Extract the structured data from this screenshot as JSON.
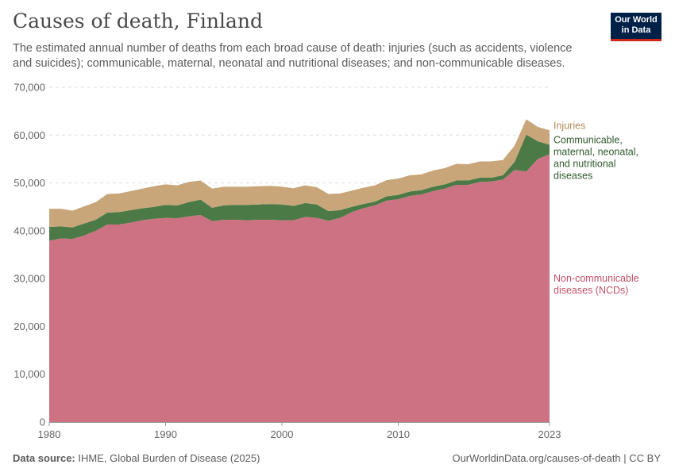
{
  "header": {
    "title": "Causes of death, Finland",
    "subtitle": "The estimated annual number of deaths from each broad cause of death: injuries (such as accidents, violence and suicides); communicable, maternal, neonatal and nutritional diseases; and non-communicable diseases."
  },
  "logo": {
    "line1": "Our World",
    "line2": "in Data"
  },
  "footer": {
    "source_label": "Data source:",
    "source_text": "IHME, Global Burden of Disease (2025)",
    "url_text": "OurWorldinData.org/causes-of-death | CC BY"
  },
  "colors": {
    "ncd": "#cc7282",
    "communicable": "#4c7a46",
    "injuries": "#c8a67a",
    "ncd_label": "#c2506a",
    "communicable_label": "#2e5a2b",
    "injuries_label": "#b08a57"
  },
  "chart_data": {
    "type": "area",
    "stacked": true,
    "title": "Causes of death, Finland",
    "xlabel": "",
    "ylabel": "",
    "xlim": [
      1980,
      2023
    ],
    "ylim": [
      0,
      70000
    ],
    "x_ticks": [
      "1980",
      "1990",
      "2000",
      "2010",
      "2023"
    ],
    "y_ticks": [
      "0",
      "10,000",
      "20,000",
      "30,000",
      "40,000",
      "50,000",
      "60,000",
      "70,000"
    ],
    "y_tick_values": [
      0,
      10000,
      20000,
      30000,
      40000,
      50000,
      60000,
      70000
    ],
    "x_tick_values": [
      1980,
      1990,
      2000,
      2010,
      2023
    ],
    "x": [
      1980,
      1981,
      1982,
      1983,
      1984,
      1985,
      1986,
      1987,
      1988,
      1989,
      1990,
      1991,
      1992,
      1993,
      1994,
      1995,
      1996,
      1997,
      1998,
      1999,
      2000,
      2001,
      2002,
      2003,
      2004,
      2005,
      2006,
      2007,
      2008,
      2009,
      2010,
      2011,
      2012,
      2013,
      2014,
      2015,
      2016,
      2017,
      2018,
      2019,
      2020,
      2021,
      2022,
      2023
    ],
    "series": [
      {
        "name": "Non-communicable diseases (NCDs)",
        "label_lines": [
          "Non-communicable",
          "diseases (NCDs)"
        ],
        "color_key": "ncd",
        "values": [
          37900,
          38400,
          38300,
          39000,
          40000,
          41300,
          41300,
          41700,
          42200,
          42500,
          42700,
          42600,
          43000,
          43300,
          42000,
          42300,
          42300,
          42200,
          42300,
          42300,
          42200,
          42200,
          42900,
          42700,
          42100,
          42700,
          43900,
          44700,
          45300,
          46300,
          46600,
          47300,
          47600,
          48300,
          48800,
          49600,
          49600,
          50200,
          50300,
          50700,
          52700,
          52400,
          55000,
          56000
        ]
      },
      {
        "name": "Communicable, maternal, neonatal, and nutritional diseases",
        "label_lines": [
          "Communicable,",
          "maternal, neonatal,",
          "and nutritional",
          "diseases"
        ],
        "color_key": "communicable",
        "values": [
          2900,
          2500,
          2400,
          2500,
          2300,
          2500,
          2600,
          2600,
          2500,
          2500,
          2700,
          2700,
          3000,
          3200,
          2800,
          3000,
          3100,
          3200,
          3200,
          3300,
          3300,
          3000,
          2900,
          2800,
          2000,
          1600,
          1100,
          900,
          800,
          900,
          900,
          900,
          900,
          900,
          900,
          900,
          900,
          900,
          800,
          900,
          1700,
          7700,
          3700,
          2000
        ]
      },
      {
        "name": "Injuries",
        "label_lines": [
          "Injuries"
        ],
        "color_key": "injuries",
        "values": [
          3800,
          3700,
          3500,
          3600,
          3700,
          3900,
          3900,
          4000,
          4100,
          4300,
          4300,
          4200,
          4200,
          4000,
          4000,
          3900,
          3800,
          3800,
          3800,
          3800,
          3700,
          3700,
          3700,
          3600,
          3600,
          3500,
          3400,
          3400,
          3400,
          3400,
          3400,
          3400,
          3300,
          3400,
          3400,
          3500,
          3400,
          3400,
          3400,
          3200,
          3400,
          3200,
          3000,
          3000
        ]
      }
    ]
  }
}
